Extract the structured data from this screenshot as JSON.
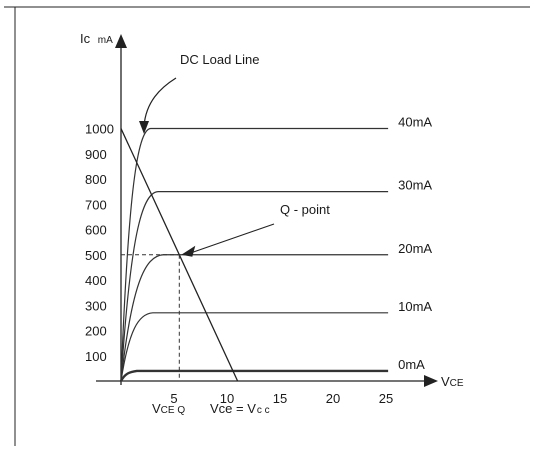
{
  "chart_data": {
    "type": "line",
    "axes": {
      "y_label": "Ic",
      "y_unit": "mA",
      "x_label": "V",
      "x_label_sub": "CE"
    },
    "y_ticks": [
      {
        "label": "1000",
        "value": 1000
      },
      {
        "label": "900",
        "value": 900
      },
      {
        "label": "800",
        "value": 800
      },
      {
        "label": "700",
        "value": 700
      },
      {
        "label": "600",
        "value": 600
      },
      {
        "label": "500",
        "value": 500
      },
      {
        "label": "400",
        "value": 400
      },
      {
        "label": "300",
        "value": 300
      },
      {
        "label": "200",
        "value": 200
      },
      {
        "label": "100",
        "value": 100
      }
    ],
    "x_ticks": [
      {
        "label": "5",
        "value": 5
      },
      {
        "label": "10",
        "value": 10
      },
      {
        "label": "15",
        "value": 15
      },
      {
        "label": "20",
        "value": 20
      },
      {
        "label": "25",
        "value": 25
      }
    ],
    "x_range": [
      0,
      27
    ],
    "y_range": [
      0,
      1200
    ],
    "curves": [
      {
        "name": "40mA",
        "sat_current": 1000,
        "knee_v": 2.8
      },
      {
        "name": "30mA",
        "sat_current": 750,
        "knee_v": 3.5
      },
      {
        "name": "20mA",
        "sat_current": 500,
        "knee_v": 4.0
      },
      {
        "name": "10mA",
        "sat_current": 270,
        "knee_v": 3.0
      },
      {
        "name": "0mA",
        "sat_current": 40,
        "knee_v": 1.5
      }
    ],
    "load_line": {
      "label": "DC Load Line",
      "v_cc": 11,
      "i_max": 1000
    },
    "q_point": {
      "label": "Q - point",
      "v": 5.5,
      "i": 500
    },
    "annotations": {
      "vce_q": "V",
      "vce_q_sub": "CE Q",
      "vce_eq": "Vce = V",
      "vce_eq_sub": "c c"
    }
  }
}
